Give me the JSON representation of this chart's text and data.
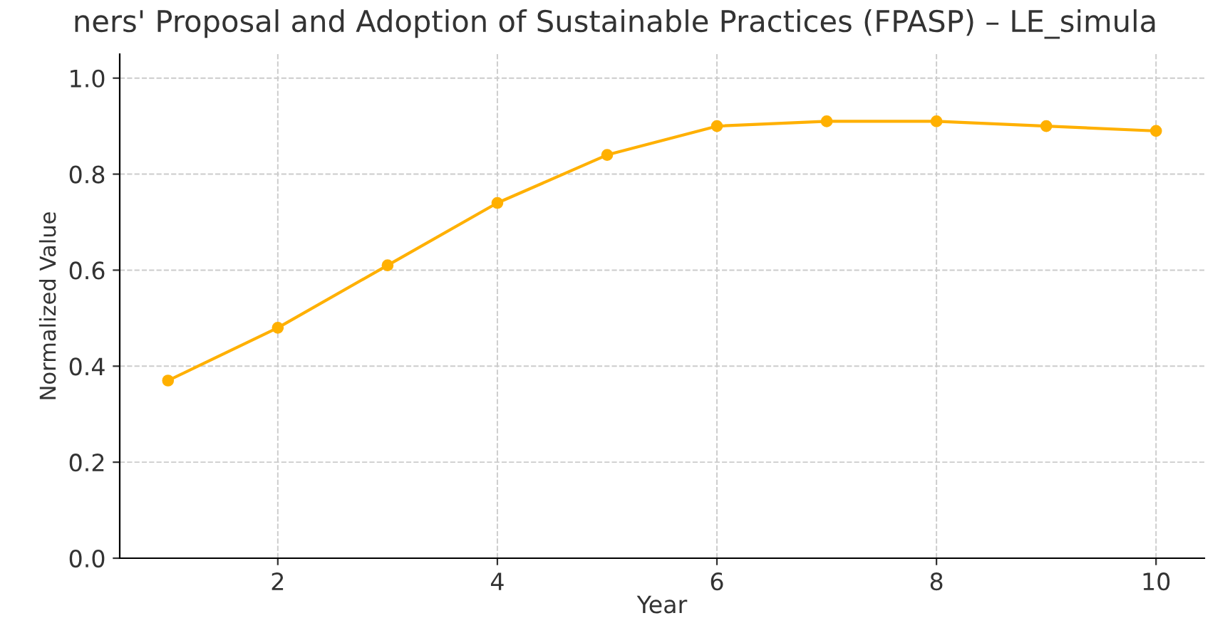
{
  "chart_data": {
    "type": "line",
    "title": "ners' Proposal and Adoption of Sustainable Practices (FPASP) – LE_simula",
    "xlabel": "Year",
    "ylabel": "Normalized Value",
    "x": [
      1,
      2,
      3,
      4,
      5,
      6,
      7,
      8,
      9,
      10
    ],
    "series": [
      {
        "color": "#ffb000",
        "values": [
          0.37,
          0.48,
          0.61,
          0.74,
          0.84,
          0.9,
          0.91,
          0.91,
          0.9,
          0.89
        ]
      }
    ],
    "xlim": [
      0.56,
      10.44
    ],
    "ylim": [
      0,
      1.05
    ],
    "xticks": [
      2,
      4,
      6,
      8,
      10
    ],
    "yticks": [
      {
        "value": 0,
        "label": "0.0"
      },
      0.2,
      0.4,
      0.6,
      0.8,
      {
        "value": 1,
        "label": "1.0"
      }
    ],
    "grid": true,
    "marker": "circle",
    "line_style": "solid"
  }
}
